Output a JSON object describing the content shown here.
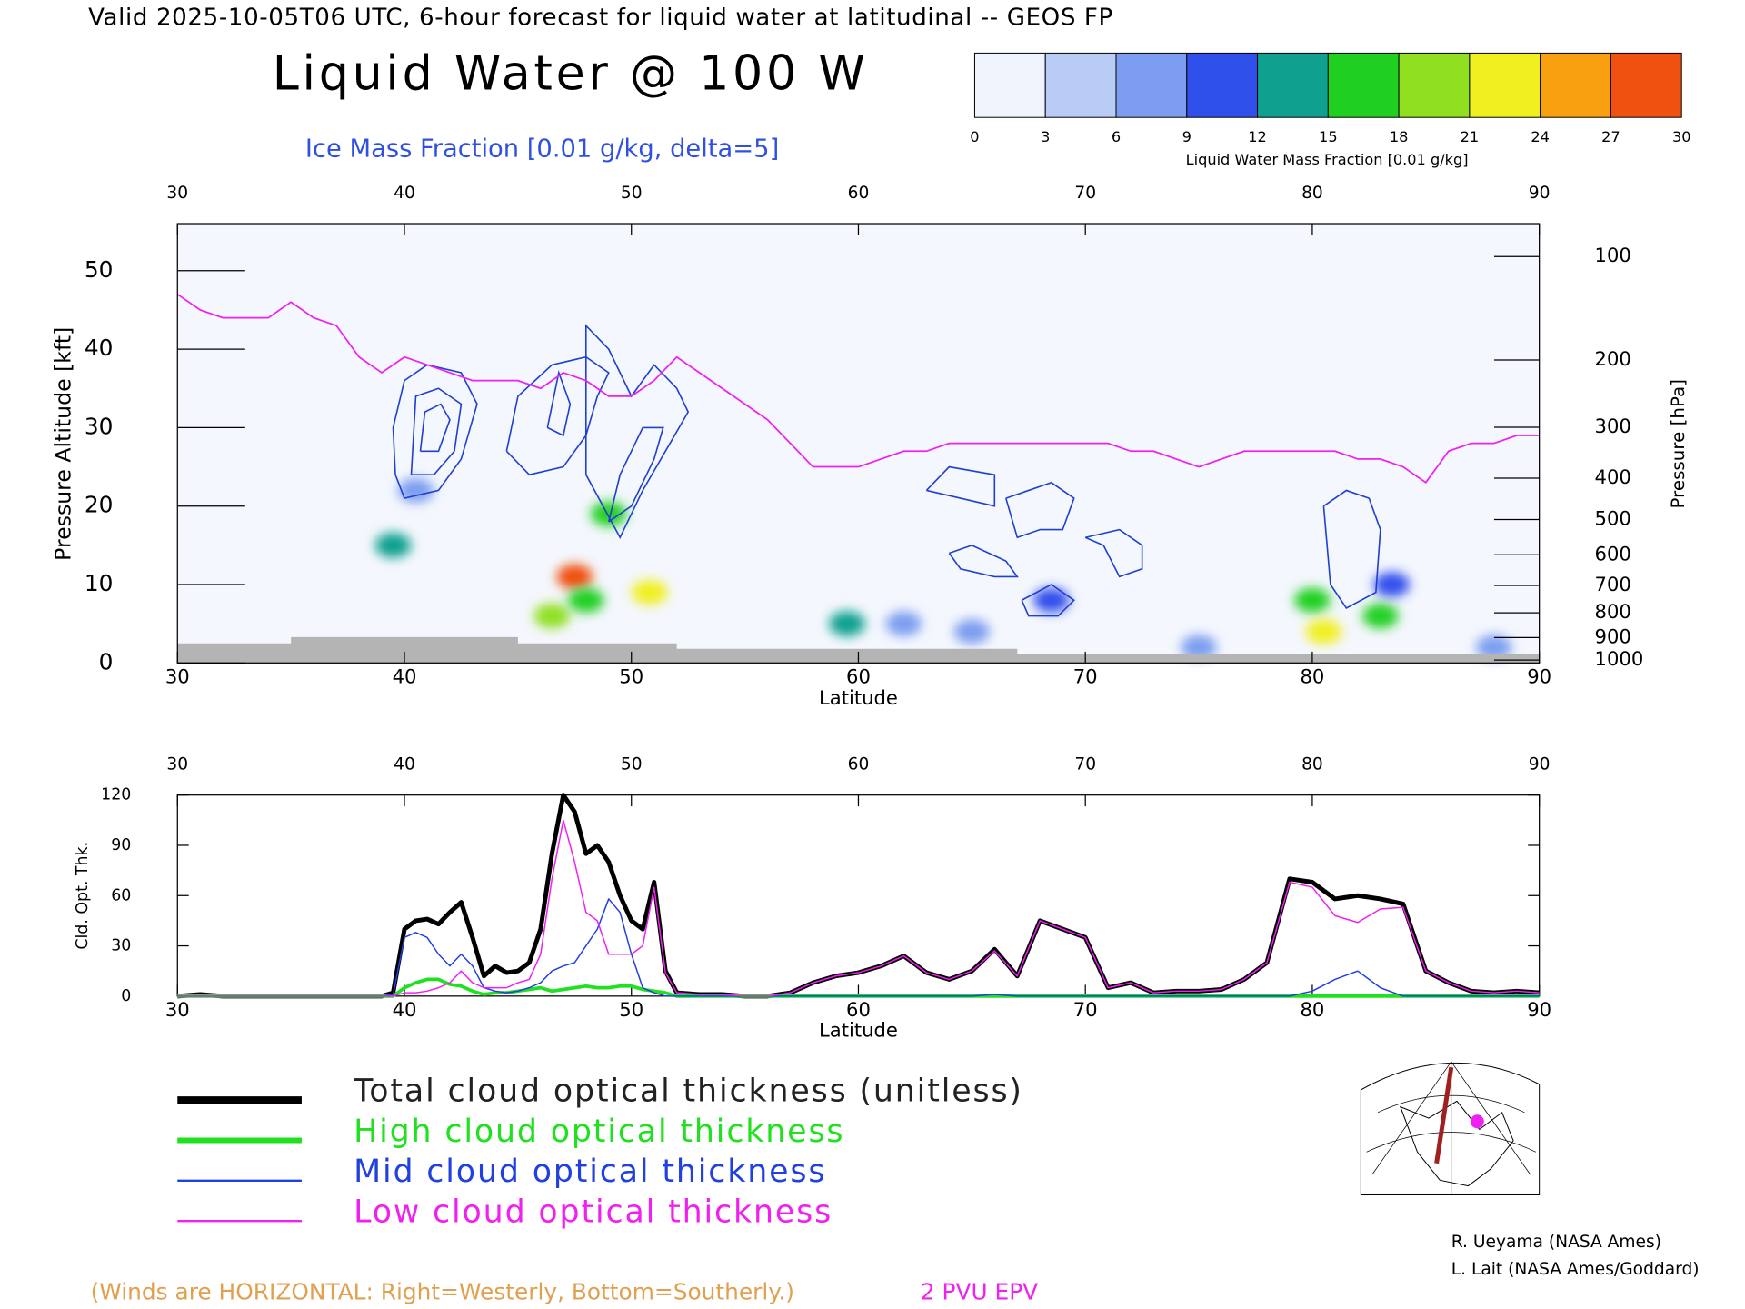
{
  "header": "Valid 2025-10-05T06 UTC, 6-hour forecast for liquid water at latitudinal -- GEOS FP",
  "chart_data": [
    {
      "type": "section",
      "title": "Liquid Water @ 100 W",
      "xlabel": "Latitude",
      "ylabel": "Pressure Altitude [kft]",
      "y2label": "Pressure [hPa]",
      "xlim": [
        30,
        90
      ],
      "xticks": [
        30,
        40,
        50,
        60,
        70,
        80,
        90
      ],
      "ylim": [
        0,
        56
      ],
      "yticks": [
        0,
        10,
        20,
        30,
        40,
        50
      ],
      "y2scale": "pressure-altitude",
      "y2ticks": [
        100,
        200,
        300,
        400,
        500,
        600,
        700,
        800,
        900,
        1000
      ],
      "colorbar": {
        "label": "Liquid Water Mass Fraction [0.01 g/kg]",
        "ticks": [
          0,
          3,
          6,
          9,
          12,
          15,
          18,
          21,
          24,
          27,
          30
        ],
        "colors": [
          "#f0f4fc",
          "#b8ccf6",
          "#7d9ef0",
          "#3050ec",
          "#10a090",
          "#20d020",
          "#90e020",
          "#f0f020",
          "#f8a010",
          "#f05010"
        ]
      },
      "liquid_water": {
        "x": [
          39.5,
          40.5,
          46.5,
          47.5,
          48,
          49,
          50.8,
          59.5,
          62,
          68.5,
          80,
          80.5,
          83,
          83.5,
          65,
          75,
          88
        ],
        "y": [
          15,
          22,
          6,
          11,
          8,
          19,
          9,
          5,
          5,
          8,
          8,
          4,
          6,
          10,
          4,
          2,
          2
        ],
        "values": [
          12,
          6,
          18,
          27,
          15,
          15,
          21,
          12,
          6,
          9,
          15,
          21,
          15,
          9,
          6,
          6,
          6
        ]
      },
      "ice": {
        "label": "Ice Mass Fraction [0.01 g/kg, delta=5]",
        "color": "#2040d0",
        "contours": [
          {
            "x": [
              40,
              41.5,
              42.5,
              43.2,
              42.5,
              41,
              40,
              39.5,
              39.6,
              40
            ],
            "y": [
              21,
              22,
              26,
              33,
              37,
              38,
              36,
              30,
              24,
              21
            ]
          },
          {
            "x": [
              40.3,
              41.3,
              42.2,
              42.5,
              41.5,
              40.5,
              40.3
            ],
            "y": [
              24,
              24,
              27,
              33,
              35,
              34,
              24
            ]
          },
          {
            "x": [
              40.7,
              41.5,
              42,
              41.6,
              40.9,
              40.7
            ],
            "y": [
              27,
              27,
              31,
              33,
              32,
              27
            ]
          },
          {
            "x": [
              44.5,
              45.5,
              47,
              48,
              48.5,
              49,
              48,
              46.5,
              45,
              44.5
            ],
            "y": [
              27,
              24,
              25,
              29,
              34,
              37,
              39,
              38,
              34,
              27
            ]
          },
          {
            "x": [
              46.3,
              47,
              47.3,
              46.8,
              46.3
            ],
            "y": [
              30,
              29,
              33,
              37,
              30
            ]
          },
          {
            "x": [
              48,
              49.5,
              50.5,
              51.7,
              52.5,
              52,
              51,
              50,
              49,
              48,
              48
            ],
            "y": [
              24,
              16,
              22,
              28,
              32,
              35,
              38,
              34,
              40,
              43,
              24
            ]
          },
          {
            "x": [
              49,
              50,
              51,
              51.4,
              50.5,
              49.5,
              49
            ],
            "y": [
              18,
              20,
              26,
              30,
              30,
              24,
              18
            ]
          },
          {
            "x": [
              63,
              64.5,
              66,
              66,
              64,
              63
            ],
            "y": [
              22,
              21,
              20,
              24,
              25,
              22
            ]
          },
          {
            "x": [
              66.5,
              67.5,
              68.5,
              69.5,
              69,
              68,
              67,
              66.5
            ],
            "y": [
              21,
              22,
              23,
              21,
              17,
              17,
              16,
              21
            ]
          },
          {
            "x": [
              70,
              71.5,
              72.5,
              72.5,
              71.5,
              70.8,
              70
            ],
            "y": [
              16,
              17,
              15,
              12,
              11,
              15,
              16
            ]
          },
          {
            "x": [
              80.5,
              81.5,
              82.5,
              83,
              82.8,
              81.5,
              80.8,
              80.5
            ],
            "y": [
              20,
              22,
              21,
              17,
              9,
              7,
              10,
              20
            ]
          },
          {
            "x": [
              64,
              65,
              66.5,
              67,
              66,
              64.5,
              64
            ],
            "y": [
              14,
              15,
              13,
              11,
              11,
              12,
              14
            ]
          },
          {
            "x": [
              67.2,
              68.5,
              69.5,
              68.8,
              67.5,
              67.2
            ],
            "y": [
              8,
              10,
              8,
              6,
              6,
              8
            ]
          }
        ]
      },
      "series": [
        {
          "name": "2 PVU EPV",
          "color": "#f020f0",
          "x": [
            30,
            31,
            32,
            33,
            34,
            35,
            36,
            37,
            38,
            39,
            40,
            41,
            42,
            43,
            44,
            45,
            46,
            47,
            48,
            49,
            50,
            51,
            52,
            53,
            54,
            55,
            56,
            57,
            58,
            59,
            60,
            61,
            62,
            63,
            64,
            65,
            66,
            67,
            68,
            69,
            70,
            71,
            72,
            73,
            74,
            75,
            76,
            77,
            78,
            79,
            80,
            81,
            82,
            83,
            84,
            85,
            86,
            87,
            88,
            89,
            90
          ],
          "values": [
            47,
            45,
            44,
            44,
            44,
            46,
            44,
            43,
            39,
            37,
            39,
            38,
            37,
            36,
            36,
            36,
            35,
            37,
            36,
            34,
            34,
            36,
            39,
            37,
            35,
            33,
            31,
            28,
            25,
            25,
            25,
            26,
            27,
            27,
            28,
            28,
            28,
            28,
            28,
            28,
            28,
            28,
            27,
            27,
            26,
            25,
            26,
            27,
            27,
            27,
            27,
            27,
            26,
            26,
            25,
            23,
            27,
            28,
            28,
            29,
            29
          ]
        }
      ],
      "surface": {
        "color": "#b4b4b4",
        "x": [
          30,
          35,
          35,
          45,
          45,
          52,
          52,
          67,
          67,
          90
        ],
        "y": [
          2.5,
          2.5,
          3.3,
          3.3,
          2.5,
          2.5,
          1.8,
          1.8,
          1.2,
          1.2
        ]
      }
    },
    {
      "type": "line",
      "xlabel": "Latitude",
      "ylabel": "Cld. Opt. Thk.",
      "xlim": [
        30,
        90
      ],
      "xticks": [
        30,
        40,
        50,
        60,
        70,
        80,
        90
      ],
      "ylim": [
        0,
        120
      ],
      "yticks": [
        0,
        30,
        60,
        90,
        120
      ],
      "x": [
        30,
        31,
        32,
        33,
        34,
        35,
        36,
        37,
        38,
        39,
        39.5,
        40,
        40.5,
        41,
        41.5,
        42,
        42.5,
        43,
        43.5,
        44,
        44.5,
        45,
        45.5,
        46,
        46.5,
        47,
        47.5,
        48,
        48.5,
        49,
        49.5,
        50,
        50.5,
        51,
        51.5,
        52,
        53,
        54,
        55,
        56,
        57,
        58,
        59,
        60,
        61,
        62,
        63,
        64,
        65,
        66,
        67,
        68,
        69,
        70,
        71,
        72,
        73,
        74,
        75,
        76,
        77,
        78,
        79,
        80,
        81,
        82,
        83,
        84,
        85,
        86,
        87,
        88,
        89,
        90
      ],
      "series": [
        {
          "name": "Total cloud optical thickness (unitless)",
          "color": "#000000",
          "line_width": 4,
          "values": [
            0,
            1,
            0,
            0,
            0,
            0,
            0,
            0,
            0,
            0,
            2,
            40,
            45,
            46,
            43,
            50,
            56,
            35,
            12,
            18,
            14,
            15,
            20,
            40,
            85,
            120,
            110,
            85,
            90,
            80,
            60,
            45,
            40,
            68,
            15,
            2,
            1,
            1,
            0,
            0,
            2,
            8,
            12,
            14,
            18,
            24,
            14,
            10,
            15,
            28,
            12,
            45,
            40,
            35,
            5,
            8,
            2,
            3,
            3,
            4,
            10,
            20,
            70,
            68,
            58,
            60,
            58,
            55,
            15,
            8,
            3,
            2,
            3,
            2
          ]
        },
        {
          "name": "High cloud optical thickness",
          "color": "#20e020",
          "line_width": 3,
          "values": [
            0,
            0,
            0,
            0,
            0,
            0,
            0,
            0,
            0,
            0,
            0,
            5,
            8,
            10,
            10,
            7,
            6,
            3,
            1,
            2,
            2,
            3,
            4,
            5,
            3,
            4,
            5,
            6,
            5,
            5,
            6,
            6,
            4,
            3,
            2,
            0,
            0,
            0,
            0,
            0,
            0,
            0,
            0,
            0,
            0,
            0,
            0,
            0,
            0,
            0,
            0,
            0,
            0,
            0,
            0,
            0,
            0,
            0,
            0,
            0,
            0,
            0,
            0,
            0,
            0,
            0,
            0,
            0,
            0,
            0,
            0,
            0,
            0,
            0
          ]
        },
        {
          "name": "Mid cloud optical thickness",
          "color": "#2040e0",
          "line_width": 1.2,
          "values": [
            0,
            0,
            0,
            0,
            0,
            0,
            0,
            0,
            0,
            0,
            1,
            35,
            38,
            35,
            25,
            18,
            25,
            18,
            5,
            3,
            2,
            3,
            5,
            8,
            15,
            18,
            20,
            30,
            40,
            58,
            50,
            25,
            5,
            2,
            0,
            0,
            0,
            0,
            0,
            0,
            0,
            0,
            0,
            0,
            0,
            0,
            0,
            0,
            0,
            1,
            0,
            0,
            0,
            0,
            0,
            0,
            0,
            0,
            0,
            0,
            0,
            0,
            0,
            3,
            10,
            15,
            5,
            0,
            0,
            0,
            0,
            0,
            0,
            0
          ]
        },
        {
          "name": "Low cloud optical thickness",
          "color": "#f020f0",
          "line_width": 1.2,
          "values": [
            0,
            0,
            0,
            0,
            0,
            0,
            0,
            0,
            0,
            0,
            0,
            2,
            2,
            3,
            5,
            8,
            15,
            8,
            5,
            5,
            5,
            8,
            10,
            25,
            70,
            105,
            80,
            50,
            45,
            25,
            25,
            25,
            30,
            65,
            14,
            2,
            1,
            1,
            0,
            0,
            2,
            8,
            12,
            14,
            18,
            24,
            14,
            10,
            15,
            27,
            12,
            45,
            40,
            35,
            5,
            8,
            2,
            3,
            3,
            4,
            10,
            20,
            68,
            65,
            48,
            44,
            52,
            53,
            15,
            8,
            3,
            2,
            3,
            2
          ]
        }
      ]
    }
  ],
  "winds_note": "(Winds are HORIZONTAL: Right=Westerly, Bottom=Southerly.)",
  "credits": [
    "R. Ueyama (NASA Ames)",
    "L. Lait (NASA Ames/Goddard)"
  ]
}
